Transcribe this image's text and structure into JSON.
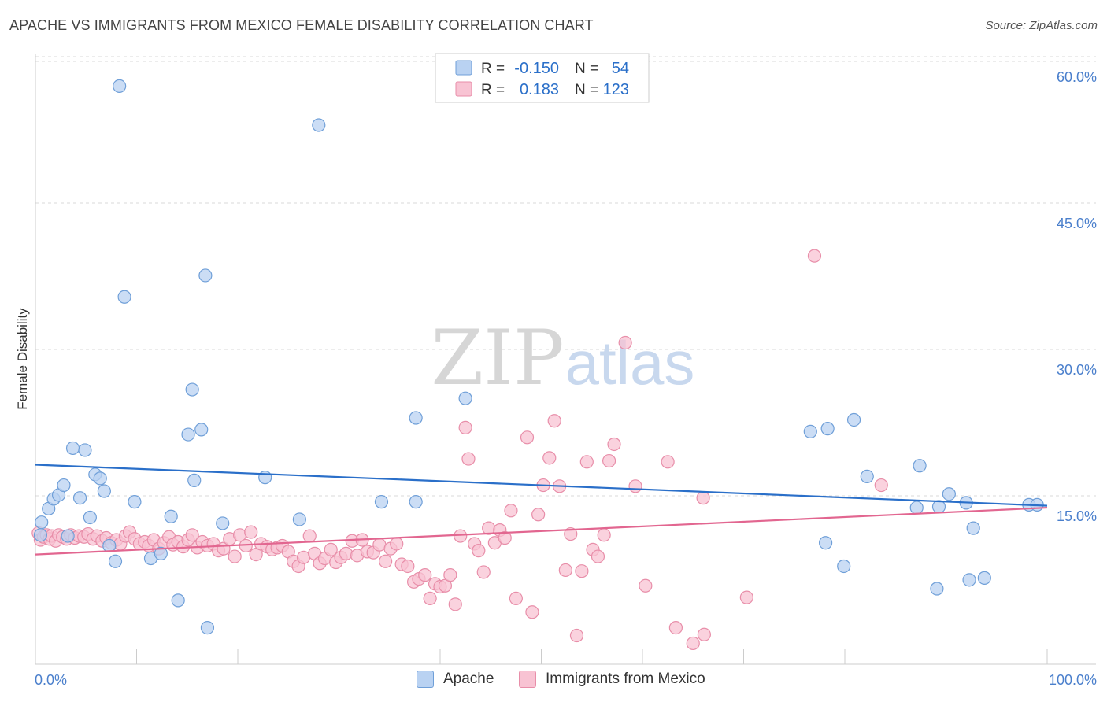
{
  "title": "APACHE VS IMMIGRANTS FROM MEXICO FEMALE DISABILITY CORRELATION CHART",
  "source": "Source: ZipAtlas.com",
  "watermark": {
    "zip": "ZIP",
    "atlas": "atlas"
  },
  "colors": {
    "apache_fill": "#b9d2f2",
    "apache_stroke": "#6f9fd8",
    "apache_line": "#2a6fc9",
    "mexico_fill": "#f8c3d3",
    "mexico_stroke": "#e88ea9",
    "mexico_line": "#e26690",
    "tick_label": "#4a7fcc",
    "grid": "#d9d9d9",
    "axis": "#cccccc"
  },
  "stats_legend": [
    {
      "r_label": "R =",
      "r_value": "-0.150",
      "n_label": "N =",
      "n_value": "54",
      "series": "apache"
    },
    {
      "r_label": "R =",
      "r_value": "0.183",
      "n_label": "N =",
      "n_value": "123",
      "series": "mexico"
    }
  ],
  "bottom_legend": [
    {
      "label": "Apache",
      "series": "apache"
    },
    {
      "label": "Immigrants from Mexico",
      "series": "mexico"
    }
  ],
  "chart_data": {
    "type": "scatter",
    "title": "APACHE VS IMMIGRANTS FROM MEXICO FEMALE DISABILITY CORRELATION CHART",
    "xlabel": "",
    "ylabel": "Female Disability",
    "xlim": [
      0,
      100
    ],
    "ylim": [
      1,
      62
    ],
    "x_tick_labels": [
      "0.0%",
      "100.0%"
    ],
    "y_ticks": [
      {
        "value": 60,
        "label": "60.0%"
      },
      {
        "value": 45,
        "label": "45.0%"
      },
      {
        "value": 30,
        "label": "30.0%"
      },
      {
        "value": 15,
        "label": "15.0%"
      }
    ],
    "grid": true,
    "legend_position": "top-center",
    "series": [
      {
        "name": "Apache",
        "key": "apache",
        "trend": {
          "x": [
            0,
            100
          ],
          "y": [
            20.2,
            16.0
          ]
        },
        "points": [
          [
            0.5,
            13.0
          ],
          [
            0.6,
            14.3
          ],
          [
            1.3,
            15.7
          ],
          [
            1.8,
            16.7
          ],
          [
            2.3,
            17.1
          ],
          [
            2.8,
            18.1
          ],
          [
            3.2,
            12.9
          ],
          [
            3.7,
            21.9
          ],
          [
            4.4,
            16.8
          ],
          [
            4.9,
            21.7
          ],
          [
            5.4,
            14.8
          ],
          [
            5.9,
            19.2
          ],
          [
            6.4,
            18.8
          ],
          [
            6.8,
            17.5
          ],
          [
            7.3,
            11.9
          ],
          [
            7.9,
            10.3
          ],
          [
            8.3,
            59.0
          ],
          [
            8.8,
            37.4
          ],
          [
            9.8,
            16.4
          ],
          [
            11.4,
            10.6
          ],
          [
            12.4,
            11.1
          ],
          [
            13.4,
            14.9
          ],
          [
            14.1,
            6.3
          ],
          [
            15.1,
            23.3
          ],
          [
            15.5,
            27.9
          ],
          [
            15.7,
            18.6
          ],
          [
            16.4,
            23.8
          ],
          [
            16.8,
            39.6
          ],
          [
            17.0,
            3.5
          ],
          [
            18.5,
            14.2
          ],
          [
            22.7,
            18.9
          ],
          [
            26.1,
            14.6
          ],
          [
            28.0,
            55.0
          ],
          [
            34.2,
            16.4
          ],
          [
            37.6,
            16.4
          ],
          [
            37.6,
            25.0
          ],
          [
            42.5,
            27.0
          ],
          [
            76.6,
            23.6
          ],
          [
            78.1,
            12.2
          ],
          [
            78.3,
            23.9
          ],
          [
            79.9,
            9.8
          ],
          [
            80.9,
            24.8
          ],
          [
            82.2,
            19.0
          ],
          [
            87.1,
            15.8
          ],
          [
            87.4,
            20.1
          ],
          [
            89.1,
            7.5
          ],
          [
            89.3,
            15.9
          ],
          [
            90.3,
            17.2
          ],
          [
            92.0,
            16.3
          ],
          [
            92.3,
            8.4
          ],
          [
            92.7,
            13.7
          ],
          [
            93.8,
            8.6
          ],
          [
            98.2,
            16.1
          ],
          [
            99.0,
            16.1
          ]
        ]
      },
      {
        "name": "Immigrants from Mexico",
        "key": "mexico",
        "trend": {
          "x": [
            0,
            100
          ],
          "y": [
            11.0,
            15.8
          ]
        },
        "points": [
          [
            0.3,
            13.2
          ],
          [
            0.5,
            12.5
          ],
          [
            0.8,
            12.8
          ],
          [
            1.1,
            13.0
          ],
          [
            1.4,
            12.6
          ],
          [
            1.6,
            12.9
          ],
          [
            2.0,
            12.4
          ],
          [
            2.3,
            13.0
          ],
          [
            2.7,
            12.8
          ],
          [
            3.1,
            12.6
          ],
          [
            3.5,
            13.0
          ],
          [
            3.9,
            12.7
          ],
          [
            4.3,
            12.9
          ],
          [
            4.8,
            12.8
          ],
          [
            5.2,
            13.1
          ],
          [
            5.7,
            12.6
          ],
          [
            6.1,
            12.9
          ],
          [
            6.6,
            12.4
          ],
          [
            7.0,
            12.7
          ],
          [
            7.5,
            12.2
          ],
          [
            8.0,
            12.5
          ],
          [
            8.4,
            12.1
          ],
          [
            8.9,
            12.9
          ],
          [
            9.3,
            13.3
          ],
          [
            9.8,
            12.6
          ],
          [
            10.3,
            12.1
          ],
          [
            10.8,
            12.3
          ],
          [
            11.2,
            11.9
          ],
          [
            11.7,
            12.5
          ],
          [
            12.2,
            11.6
          ],
          [
            12.7,
            12.2
          ],
          [
            13.2,
            12.8
          ],
          [
            13.6,
            12.0
          ],
          [
            14.1,
            12.3
          ],
          [
            14.6,
            11.8
          ],
          [
            15.1,
            12.5
          ],
          [
            15.5,
            13.0
          ],
          [
            16.0,
            11.7
          ],
          [
            16.5,
            12.3
          ],
          [
            17.0,
            11.9
          ],
          [
            17.6,
            12.1
          ],
          [
            18.1,
            11.4
          ],
          [
            18.6,
            11.6
          ],
          [
            19.2,
            12.6
          ],
          [
            19.7,
            10.8
          ],
          [
            20.2,
            13.0
          ],
          [
            20.8,
            11.9
          ],
          [
            21.3,
            13.3
          ],
          [
            21.8,
            11.0
          ],
          [
            22.3,
            12.1
          ],
          [
            22.9,
            11.8
          ],
          [
            23.4,
            11.5
          ],
          [
            23.9,
            11.7
          ],
          [
            24.4,
            11.9
          ],
          [
            25.0,
            11.3
          ],
          [
            25.5,
            10.3
          ],
          [
            26.0,
            9.8
          ],
          [
            26.5,
            10.7
          ],
          [
            27.1,
            12.9
          ],
          [
            27.6,
            11.1
          ],
          [
            28.1,
            10.1
          ],
          [
            28.6,
            10.6
          ],
          [
            29.2,
            11.5
          ],
          [
            29.7,
            10.2
          ],
          [
            30.2,
            10.7
          ],
          [
            30.7,
            11.1
          ],
          [
            31.3,
            12.4
          ],
          [
            31.8,
            10.9
          ],
          [
            32.3,
            12.5
          ],
          [
            32.8,
            11.3
          ],
          [
            33.4,
            11.2
          ],
          [
            34.0,
            12.0
          ],
          [
            34.6,
            10.3
          ],
          [
            35.1,
            11.6
          ],
          [
            35.7,
            12.1
          ],
          [
            36.2,
            10.0
          ],
          [
            36.8,
            9.8
          ],
          [
            37.4,
            8.2
          ],
          [
            37.9,
            8.5
          ],
          [
            38.5,
            8.9
          ],
          [
            39.0,
            6.5
          ],
          [
            39.5,
            8.0
          ],
          [
            40.0,
            7.7
          ],
          [
            40.5,
            7.8
          ],
          [
            41.0,
            8.9
          ],
          [
            41.5,
            5.9
          ],
          [
            42.0,
            12.9
          ],
          [
            42.5,
            24.0
          ],
          [
            42.8,
            20.8
          ],
          [
            43.4,
            12.1
          ],
          [
            43.8,
            11.4
          ],
          [
            44.3,
            9.2
          ],
          [
            44.8,
            13.7
          ],
          [
            45.4,
            12.2
          ],
          [
            45.9,
            13.5
          ],
          [
            46.4,
            12.7
          ],
          [
            47.0,
            15.5
          ],
          [
            47.5,
            6.5
          ],
          [
            48.6,
            23.0
          ],
          [
            49.1,
            5.1
          ],
          [
            49.7,
            15.1
          ],
          [
            50.2,
            18.1
          ],
          [
            50.8,
            20.9
          ],
          [
            51.3,
            24.7
          ],
          [
            51.8,
            18.0
          ],
          [
            52.4,
            9.4
          ],
          [
            52.9,
            13.1
          ],
          [
            53.5,
            2.7
          ],
          [
            54.0,
            9.3
          ],
          [
            54.5,
            20.5
          ],
          [
            55.1,
            11.5
          ],
          [
            55.6,
            10.8
          ],
          [
            56.2,
            13.0
          ],
          [
            56.7,
            20.6
          ],
          [
            57.2,
            22.3
          ],
          [
            58.3,
            32.7
          ],
          [
            59.3,
            18.0
          ],
          [
            60.3,
            7.8
          ],
          [
            62.5,
            20.5
          ],
          [
            63.3,
            3.5
          ],
          [
            65.0,
            1.9
          ],
          [
            66.0,
            16.8
          ],
          [
            66.1,
            2.8
          ],
          [
            70.3,
            6.6
          ],
          [
            77.0,
            41.6
          ],
          [
            83.6,
            18.1
          ]
        ]
      }
    ]
  }
}
